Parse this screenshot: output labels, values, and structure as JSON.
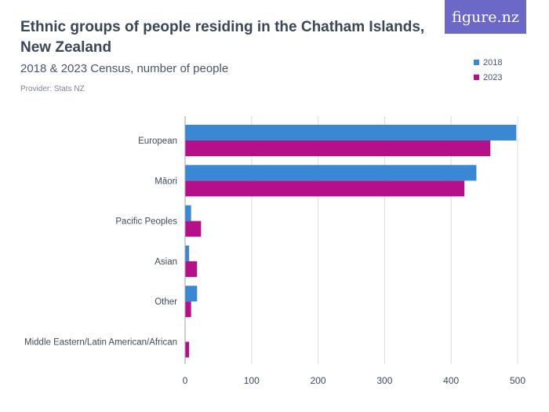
{
  "header": {
    "title": "Ethnic groups of people residing in the Chatham Islands, New Zealand",
    "subtitle": "2018 & 2023 Census, number of people",
    "provider": "Provider: Stats NZ",
    "logo_text": "figure.nz"
  },
  "colors": {
    "series_2018": "#3a87d3",
    "series_2023": "#b5108a",
    "logo_bg": "#6c68c8"
  },
  "chart_data": {
    "type": "bar",
    "orientation": "horizontal",
    "categories": [
      "European",
      "Māori",
      "Pacific Peoples",
      "Asian",
      "Other",
      "Middle Eastern/Latin American/African"
    ],
    "series": [
      {
        "name": "2018",
        "color": "#3a87d3",
        "values": [
          498,
          438,
          9,
          6,
          18,
          0
        ]
      },
      {
        "name": "2023",
        "color": "#b5108a",
        "values": [
          459,
          420,
          24,
          18,
          9,
          6
        ]
      }
    ],
    "xlim": [
      0,
      500
    ],
    "xticks": [
      0,
      100,
      200,
      300,
      400,
      500
    ],
    "grid": true,
    "legend": "top-right"
  }
}
